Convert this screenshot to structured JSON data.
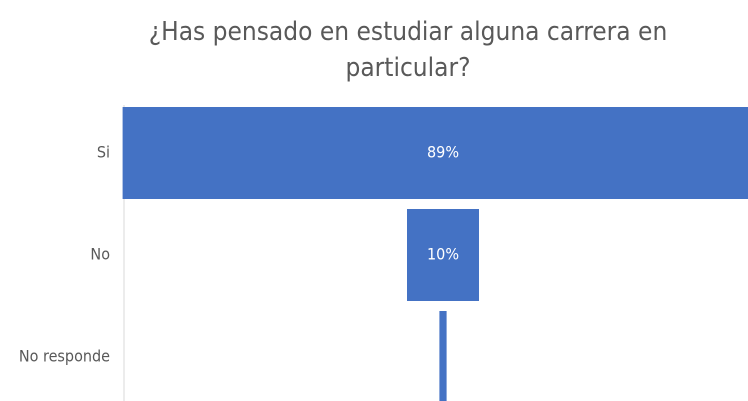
{
  "chart_data": {
    "type": "funnel",
    "title": "¿Has pensado en estudiar alguna carrera en particular?",
    "categories": [
      "Si",
      "No",
      "No responde"
    ],
    "values": [
      89,
      10,
      1
    ],
    "value_labels": [
      "89%",
      "10%",
      null
    ],
    "color": "#4472c4"
  }
}
